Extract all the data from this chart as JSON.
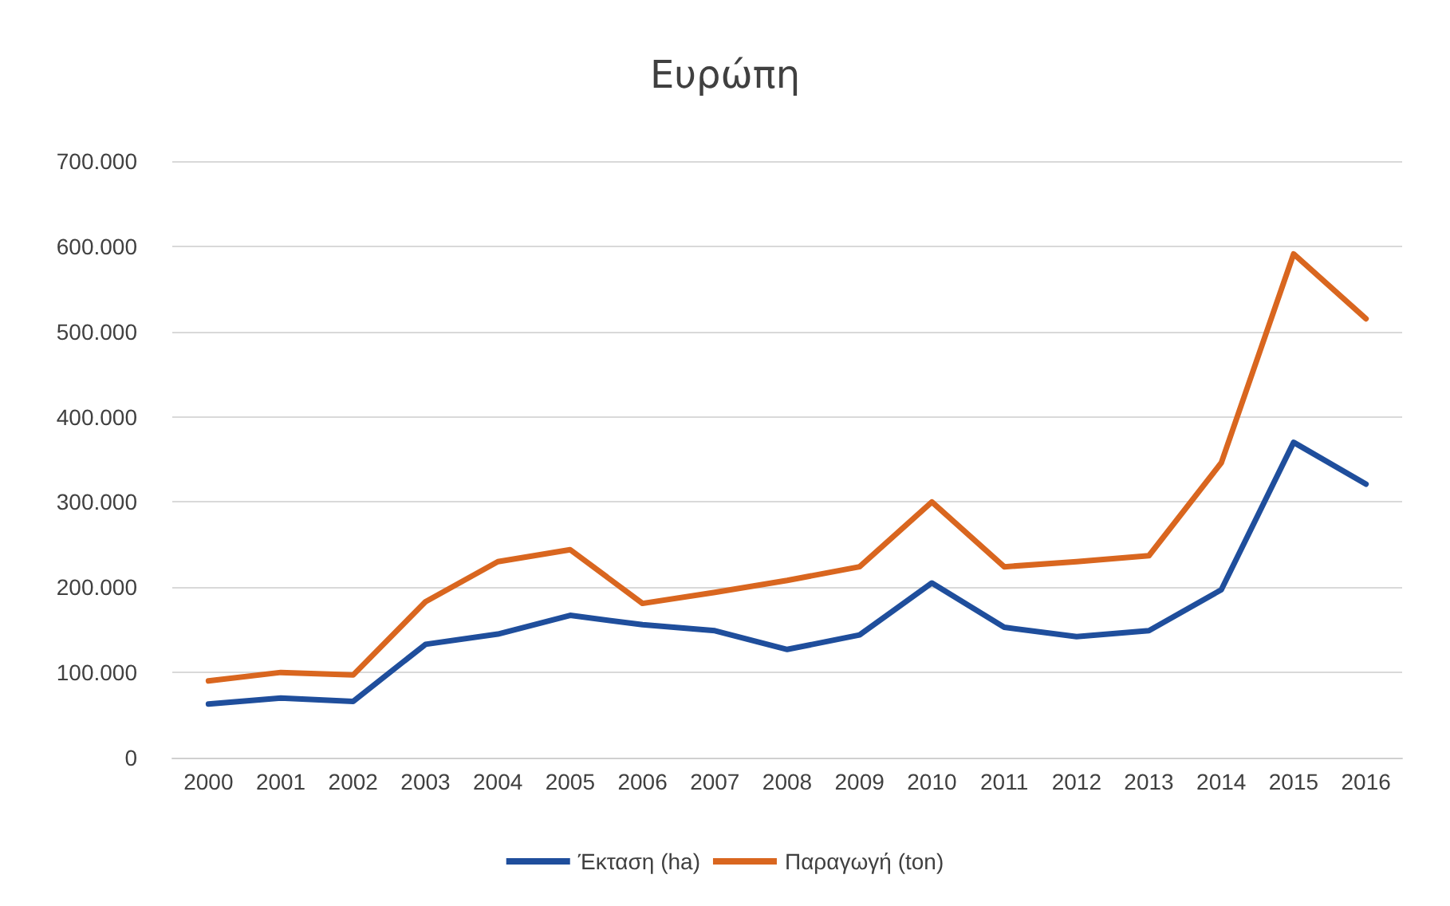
{
  "chart_data": {
    "type": "line",
    "title": "Ευρώπη",
    "categories": [
      "2000",
      "2001",
      "2002",
      "2003",
      "2004",
      "2005",
      "2006",
      "2007",
      "2008",
      "2009",
      "2010",
      "2011",
      "2012",
      "2013",
      "2014",
      "2015",
      "2016"
    ],
    "series": [
      {
        "name": "Έκταση (ha)",
        "color": "#1f4e9c",
        "values": [
          63000,
          70000,
          66000,
          133000,
          145000,
          167000,
          156000,
          149000,
          127000,
          144000,
          205000,
          153000,
          142000,
          149000,
          197000,
          370000,
          321000
        ]
      },
      {
        "name": "Παραγωγή (ton)",
        "color": "#d9661f",
        "values": [
          90000,
          100000,
          97000,
          183000,
          230000,
          244000,
          181000,
          194000,
          208000,
          224000,
          300000,
          224000,
          230000,
          237000,
          346000,
          591000,
          515000
        ]
      }
    ],
    "ylim": [
      0,
      700000
    ],
    "yticks": [
      0,
      {
        "value": 100000,
        "label": "100.000"
      },
      {
        "value": 200000,
        "label": "200.000"
      },
      {
        "value": 300000,
        "label": "300.000"
      },
      {
        "value": 400000,
        "label": "400.000"
      },
      {
        "value": 500000,
        "label": "500.000"
      },
      {
        "value": 600000,
        "label": "600.000"
      },
      {
        "value": 700000,
        "label": "700.000"
      }
    ],
    "grid": "y",
    "legend": "bottom",
    "marker": "none",
    "line_style": "solid"
  }
}
